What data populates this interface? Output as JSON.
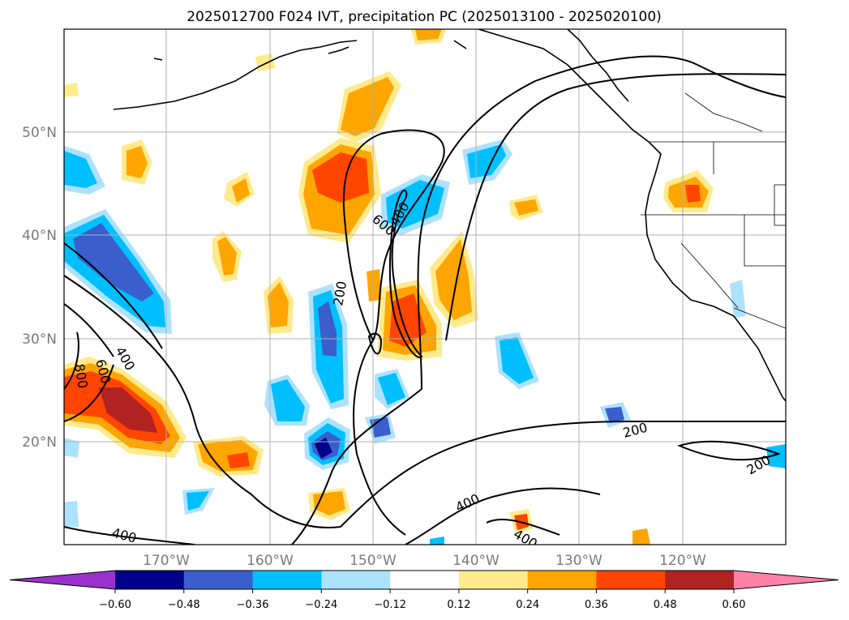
{
  "title": "2025012700 F024 IVT, precipitation PC (2025013100 - 2025020100)",
  "lat_labels": [
    "50°N",
    "40°N",
    "30°N",
    "20°N"
  ],
  "lon_labels": [
    "170°W",
    "160°W",
    "150°W",
    "140°W",
    "130°W",
    "120°W"
  ],
  "colorbar": {
    "ticks": [
      "−0.60",
      "−0.48",
      "−0.36",
      "−0.24",
      "−0.12",
      "0.12",
      "0.24",
      "0.36",
      "0.48",
      "0.60"
    ],
    "colors": [
      "#9932CC",
      "#00008B",
      "#3A5FCD",
      "#00BFFF",
      "#ADE2FF",
      "#FFFFFF",
      "#FFEA8C",
      "#FFA500",
      "#FF4500",
      "#B22222",
      "#FF82AB"
    ]
  },
  "contour_labels": [
    "600",
    "400",
    "200",
    "800",
    "600",
    "400",
    "200",
    "200",
    "400",
    "400",
    "400"
  ],
  "colors": {
    "positive_strong": "#B22222",
    "positive_high": "#FF4500",
    "positive_mid": "#FFA500",
    "positive_low": "#FFEA8C",
    "negative_low": "#ADE2FF",
    "negative_mid": "#00BFFF",
    "negative_high": "#3A5FCD",
    "negative_strong": "#00008B"
  }
}
